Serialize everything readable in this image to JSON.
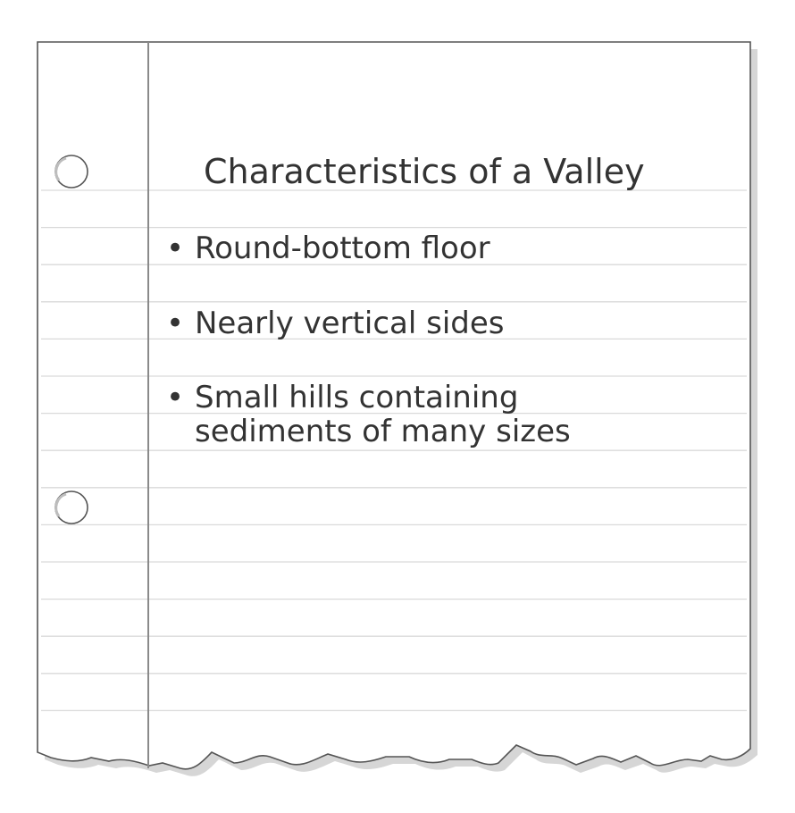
{
  "notebook": {
    "title": "Characteristics of a Valley",
    "bullet_symbol": "•",
    "items": [
      {
        "lines": [
          "Round-bottom floor"
        ]
      },
      {
        "lines": [
          "Nearly vertical sides"
        ]
      },
      {
        "lines": [
          "Small hills containing",
          "sediments of many sizes"
        ]
      }
    ]
  },
  "colors": {
    "paper": "#ffffff",
    "ruled_line": "#d9d9d9",
    "margin_line": "#8a8a8a",
    "outline": "#555555",
    "shadow": "#cccccc",
    "text": "#333333"
  }
}
